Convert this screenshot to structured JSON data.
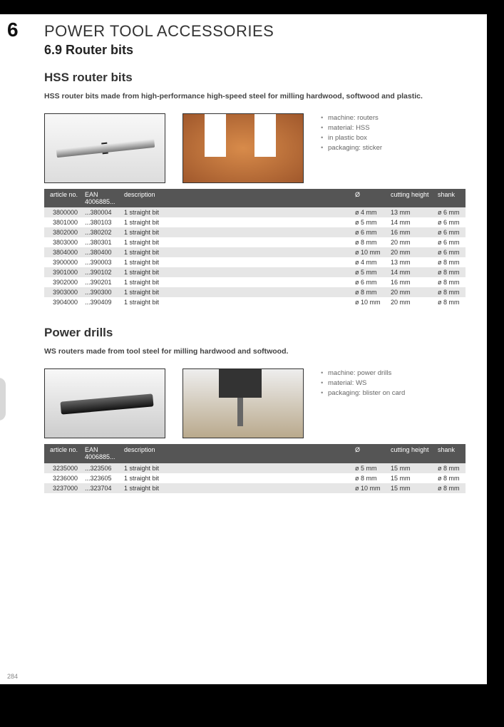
{
  "chapter": {
    "number": "6",
    "title": "POWER TOOL ACCESSORIES"
  },
  "section": {
    "number_title": "6.9 Router bits"
  },
  "page_num": "284",
  "hss": {
    "title": "HSS router bits",
    "intro": "HSS router bits made from high-performance high-speed steel for milling hardwood, softwood and plastic.",
    "bullets": [
      "machine: routers",
      "material: HSS",
      "in plastic box",
      "packaging: sticker"
    ],
    "columns": [
      "article no.",
      "EAN 4006885...",
      "description",
      "Ø",
      "cutting height",
      "shank"
    ],
    "rows": [
      [
        "3800000",
        "...380004",
        "1 straight bit",
        "ø 4 mm",
        "13 mm",
        "ø 6 mm"
      ],
      [
        "3801000",
        "...380103",
        "1 straight bit",
        "ø 5 mm",
        "14 mm",
        "ø 6 mm"
      ],
      [
        "3802000",
        "...380202",
        "1 straight bit",
        "ø 6 mm",
        "16 mm",
        "ø 6 mm"
      ],
      [
        "3803000",
        "...380301",
        "1 straight bit",
        "ø 8 mm",
        "20 mm",
        "ø 6 mm"
      ],
      [
        "3804000",
        "...380400",
        "1 straight bit",
        "ø 10 mm",
        "20 mm",
        "ø 6 mm"
      ],
      [
        "3900000",
        "...390003",
        "1 straight bit",
        "ø 4 mm",
        "13 mm",
        "ø 8 mm"
      ],
      [
        "3901000",
        "...390102",
        "1 straight bit",
        "ø 5 mm",
        "14 mm",
        "ø 8 mm"
      ],
      [
        "3902000",
        "...390201",
        "1 straight bit",
        "ø 6 mm",
        "16 mm",
        "ø 8 mm"
      ],
      [
        "3903000",
        "...390300",
        "1 straight bit",
        "ø 8 mm",
        "20 mm",
        "ø 8 mm"
      ],
      [
        "3904000",
        "...390409",
        "1 straight bit",
        "ø 10 mm",
        "20 mm",
        "ø 8 mm"
      ]
    ]
  },
  "pd": {
    "title": "Power drills",
    "intro": "WS routers made from tool steel for milling hardwood and softwood.",
    "bullets": [
      "machine: power drills",
      "material: WS",
      "packaging: blister on card"
    ],
    "columns": [
      "article no.",
      "EAN 4006885...",
      "description",
      "Ø",
      "cutting height",
      "shank"
    ],
    "rows": [
      [
        "3235000",
        "...323506",
        "1 straight bit",
        "ø 5 mm",
        "15 mm",
        "ø 8 mm"
      ],
      [
        "3236000",
        "...323605",
        "1 straight bit",
        "ø 8 mm",
        "15 mm",
        "ø 8 mm"
      ],
      [
        "3237000",
        "...323704",
        "1 straight bit",
        "ø 10 mm",
        "15 mm",
        "ø 8 mm"
      ]
    ]
  }
}
